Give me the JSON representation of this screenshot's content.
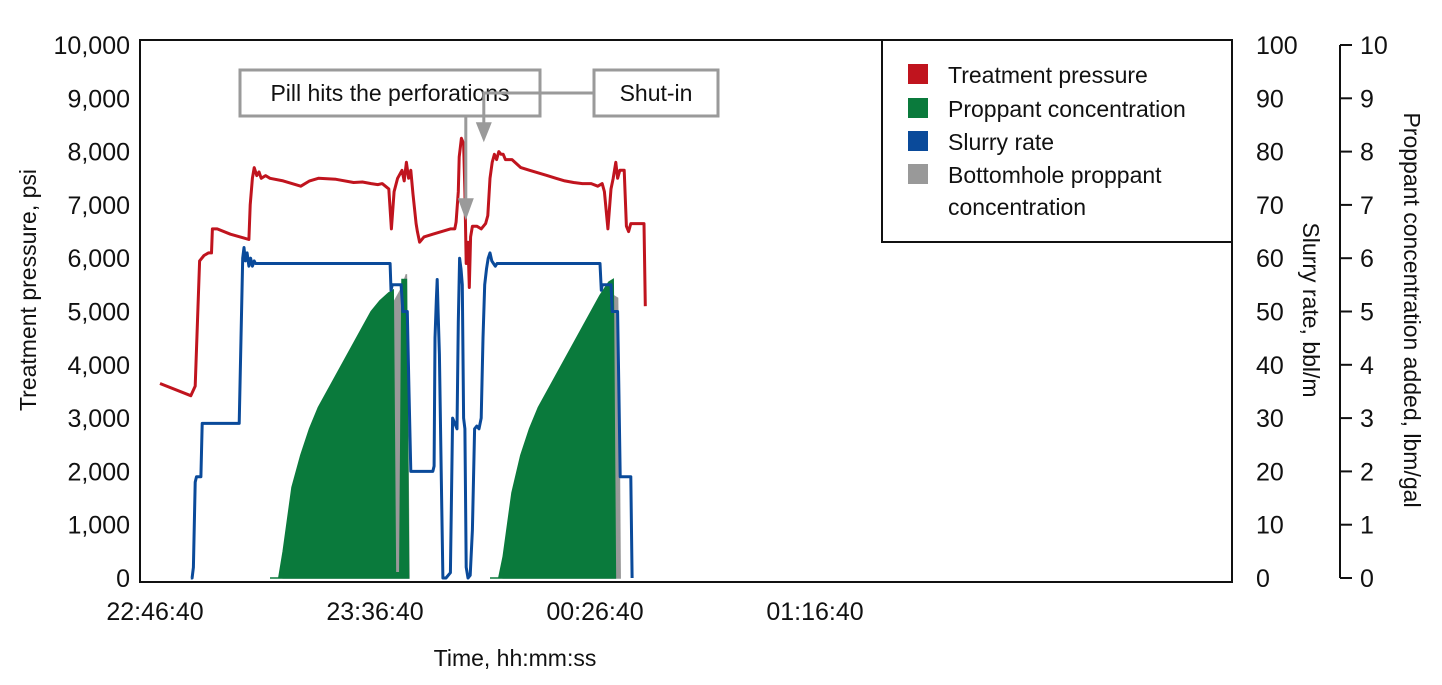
{
  "chart_data": {
    "type": "line",
    "xlabel": "Time, hh:mm:ss",
    "ylabel_left": "Treatment pressure, psi",
    "ylabel_right1": "Slurry rate, bbl/m",
    "ylabel_right2": "Proppant concentration added, lbm/gal",
    "x_ticks": [
      "22:46:40",
      "23:36:40",
      "00:26:40",
      "01:16:40"
    ],
    "x_tick_minutes": [
      0,
      50,
      100,
      150
    ],
    "xlim": [
      0,
      150
    ],
    "left_ticks": [
      "0",
      "1,000",
      "2,000",
      "3,000",
      "4,000",
      "5,000",
      "6,000",
      "7,000",
      "8,000",
      "9,000",
      "10,000"
    ],
    "ylim_left": [
      0,
      10000
    ],
    "right1_ticks": [
      "0",
      "10",
      "20",
      "30",
      "40",
      "50",
      "60",
      "70",
      "80",
      "90",
      "100"
    ],
    "ylim_right1": [
      0,
      100
    ],
    "right2_ticks": [
      "0",
      "1",
      "2",
      "3",
      "4",
      "5",
      "6",
      "7",
      "8",
      "9",
      "10"
    ],
    "ylim_right2": [
      0,
      10
    ],
    "legend_position": "top-right",
    "legend": [
      {
        "label": "Treatment pressure",
        "color": "#c0141e"
      },
      {
        "label": "Proppant concentration",
        "color": "#0a7a3c"
      },
      {
        "label": "Slurry rate",
        "color": "#0a4a9a"
      },
      {
        "label": "Bottomhole proppant concentration",
        "label_lines": [
          "Bottomhole proppant",
          "concentration"
        ],
        "color": "#999999"
      }
    ],
    "annotations": [
      {
        "text": "Pill hits the perforations",
        "x": 69.5,
        "y_pressure": 6600
      },
      {
        "text": "Shut-in",
        "x": 73.6,
        "y_pressure": 8100
      }
    ],
    "series": [
      {
        "name": "Treatment pressure",
        "color": "#c0141e",
        "axis": "left",
        "segments": [
          [
            [
              0,
              3650
            ],
            [
              7,
              3420
            ],
            [
              8,
              3600
            ],
            [
              9,
              5950
            ],
            [
              10,
              6050
            ],
            [
              11,
              6100
            ],
            [
              11.7,
              6100
            ],
            [
              11.9,
              6550
            ],
            [
              13,
              6550
            ],
            [
              16,
              6450
            ],
            [
              19,
              6380
            ],
            [
              20.2,
              6350
            ],
            [
              20.5,
              7000
            ],
            [
              21,
              7500
            ],
            [
              21.4,
              7700
            ],
            [
              22,
              7550
            ],
            [
              22.5,
              7620
            ],
            [
              23,
              7500
            ],
            [
              24,
              7550
            ],
            [
              25,
              7500
            ],
            [
              28,
              7450
            ],
            [
              30,
              7400
            ],
            [
              32,
              7350
            ],
            [
              34,
              7450
            ],
            [
              36,
              7500
            ],
            [
              40,
              7480
            ],
            [
              44,
              7420
            ],
            [
              46,
              7430
            ],
            [
              48,
              7400
            ],
            [
              49.5,
              7380
            ],
            [
              50.5,
              7400
            ],
            [
              52,
              7300
            ],
            [
              52.6,
              6550
            ],
            [
              53.2,
              7250
            ],
            [
              54,
              7500
            ],
            [
              55,
              7650
            ],
            [
              55.5,
              7450
            ],
            [
              56,
              7800
            ],
            [
              56.5,
              7500
            ],
            [
              57,
              7650
            ],
            [
              57.5,
              7200
            ],
            [
              58.2,
              6650
            ],
            [
              58.5,
              6500
            ],
            [
              59,
              6300
            ],
            [
              60,
              6400
            ],
            [
              62,
              6450
            ],
            [
              64,
              6500
            ],
            [
              66,
              6550
            ],
            [
              67,
              6550
            ],
            [
              67.3,
              6680
            ],
            [
              67.8,
              7250
            ],
            [
              68,
              7900
            ],
            [
              68.5,
              8250
            ],
            [
              69,
              8150
            ],
            [
              69.3,
              7250
            ],
            [
              69.6,
              5900
            ],
            [
              70,
              6300
            ],
            [
              70.3,
              5450
            ],
            [
              70.6,
              6400
            ],
            [
              71,
              6600
            ],
            [
              72,
              6600
            ],
            [
              73,
              6550
            ],
            [
              74,
              6650
            ],
            [
              74.5,
              6800
            ],
            [
              75,
              7500
            ],
            [
              75.5,
              7800
            ],
            [
              76,
              7950
            ],
            [
              76.5,
              7850
            ],
            [
              77,
              8000
            ],
            [
              77.5,
              7950
            ],
            [
              78,
              7950
            ],
            [
              78.5,
              7850
            ],
            [
              80,
              7850
            ],
            [
              82,
              7700
            ],
            [
              84,
              7650
            ],
            [
              86,
              7600
            ],
            [
              88,
              7550
            ],
            [
              90,
              7500
            ],
            [
              92,
              7450
            ],
            [
              94,
              7420
            ],
            [
              96,
              7400
            ],
            [
              98,
              7400
            ],
            [
              99.5,
              7350
            ],
            [
              100.5,
              7400
            ],
            [
              101,
              7250
            ],
            [
              101.8,
              6550
            ],
            [
              102.5,
              7300
            ],
            [
              103,
              7500
            ],
            [
              103.6,
              7800
            ],
            [
              104,
              7500
            ],
            [
              104.5,
              7650
            ],
            [
              105.5,
              7650
            ],
            [
              106,
              6600
            ],
            [
              106.5,
              6500
            ],
            [
              107,
              6650
            ],
            [
              110,
              6650
            ],
            [
              110.3,
              5100
            ]
          ]
        ]
      },
      {
        "name": "Slurry rate",
        "color": "#0a4a9a",
        "axis": "right1",
        "segments": [
          [
            [
              7,
              0
            ],
            [
              7.3,
              0
            ],
            [
              7.6,
              2
            ],
            [
              8,
              18
            ],
            [
              8.3,
              19
            ],
            [
              9.3,
              19
            ],
            [
              9.6,
              29
            ],
            [
              18,
              29
            ],
            [
              18.4,
              45
            ],
            [
              18.8,
              60
            ],
            [
              19.1,
              62
            ],
            [
              19.4,
              59.5
            ],
            [
              19.8,
              61
            ],
            [
              20.2,
              58.5
            ],
            [
              20.6,
              60
            ],
            [
              21,
              58.5
            ],
            [
              21.4,
              59.5
            ],
            [
              21.7,
              59
            ],
            [
              52.3,
              59
            ],
            [
              52.5,
              54
            ],
            [
              52.8,
              55
            ],
            [
              54.8,
              55
            ],
            [
              55.2,
              50
            ],
            [
              56.2,
              50
            ],
            [
              56.6,
              35
            ],
            [
              57,
              20
            ],
            [
              62,
              20
            ],
            [
              62.3,
              21
            ],
            [
              62.5,
              45
            ],
            [
              62.8,
              52
            ],
            [
              63,
              56
            ],
            [
              63.2,
              50
            ],
            [
              63.5,
              42
            ],
            [
              63.9,
              20
            ],
            [
              64.3,
              0
            ],
            [
              65,
              0
            ],
            [
              66,
              1
            ],
            [
              66.5,
              30
            ],
            [
              67,
              29
            ],
            [
              67.5,
              28
            ],
            [
              67.8,
              48
            ],
            [
              68.1,
              60
            ],
            [
              68.4,
              58
            ],
            [
              68.7,
              55
            ],
            [
              69,
              30
            ],
            [
              69.3,
              28
            ],
            [
              69.6,
              2
            ],
            [
              70,
              0
            ],
            [
              70.5,
              0.5
            ],
            [
              71,
              9
            ],
            [
              71.5,
              28
            ],
            [
              72,
              28.5
            ],
            [
              72.5,
              28
            ],
            [
              73,
              30
            ],
            [
              73.4,
              45
            ],
            [
              73.8,
              55
            ],
            [
              74.2,
              58
            ],
            [
              74.6,
              60
            ],
            [
              75,
              61
            ],
            [
              75.4,
              59.5
            ],
            [
              75.8,
              59
            ],
            [
              76.2,
              58.5
            ],
            [
              76.6,
              59
            ],
            [
              100,
              59
            ],
            [
              100.3,
              54
            ],
            [
              100.5,
              55
            ],
            [
              102.5,
              55
            ],
            [
              102.8,
              50
            ],
            [
              104,
              50
            ],
            [
              104.3,
              35
            ],
            [
              104.6,
              19
            ],
            [
              107,
              19
            ],
            [
              107.3,
              0
            ]
          ]
        ]
      },
      {
        "name": "Proppant concentration",
        "color": "#0a7a3c",
        "axis": "right2",
        "segments": [
          [
            [
              25,
              0
            ],
            [
              27,
              0
            ],
            [
              28,
              0.5
            ],
            [
              30,
              1.7
            ],
            [
              32,
              2.3
            ],
            [
              34,
              2.8
            ],
            [
              36,
              3.2
            ],
            [
              38,
              3.5
            ],
            [
              40,
              3.8
            ],
            [
              42,
              4.1
            ],
            [
              44,
              4.4
            ],
            [
              46,
              4.7
            ],
            [
              48,
              5.0
            ],
            [
              50,
              5.2
            ],
            [
              52,
              5.35
            ],
            [
              53,
              5.4
            ],
            [
              53.5,
              0.1
            ],
            [
              54.5,
              0.1
            ],
            [
              55,
              5.6
            ],
            [
              56,
              5.6
            ],
            [
              56.5,
              0
            ]
          ],
          [
            [
              75,
              0
            ],
            [
              77,
              0
            ],
            [
              78,
              0.4
            ],
            [
              80,
              1.6
            ],
            [
              82,
              2.3
            ],
            [
              84,
              2.8
            ],
            [
              86,
              3.2
            ],
            [
              88,
              3.5
            ],
            [
              90,
              3.8
            ],
            [
              92,
              4.1
            ],
            [
              94,
              4.4
            ],
            [
              96,
              4.7
            ],
            [
              98,
              5.0
            ],
            [
              100,
              5.3
            ],
            [
              102,
              5.55
            ],
            [
              103,
              5.6
            ],
            [
              103.5,
              0
            ]
          ]
        ]
      },
      {
        "name": "Bottomhole proppant concentration",
        "color": "#999999",
        "axis": "right2",
        "segments": [
          [
            [
              28,
              0.1
            ],
            [
              30,
              1.2
            ],
            [
              32,
              1.8
            ],
            [
              34,
              2.3
            ],
            [
              36,
              2.7
            ],
            [
              38,
              3.05
            ],
            [
              40,
              3.35
            ],
            [
              42,
              3.65
            ],
            [
              44,
              3.95
            ],
            [
              46,
              4.25
            ],
            [
              48,
              4.55
            ],
            [
              50,
              4.85
            ],
            [
              52,
              5.05
            ],
            [
              53,
              5.15
            ],
            [
              54,
              5.3
            ],
            [
              55,
              5.45
            ],
            [
              56,
              5.7
            ],
            [
              56.3,
              3.0
            ],
            [
              56.6,
              0
            ]
          ],
          [
            [
              78,
              0.1
            ],
            [
              80,
              1.2
            ],
            [
              82,
              1.8
            ],
            [
              84,
              2.3
            ],
            [
              86,
              2.7
            ],
            [
              88,
              3.05
            ],
            [
              90,
              3.35
            ],
            [
              92,
              3.65
            ],
            [
              94,
              3.95
            ],
            [
              96,
              4.25
            ],
            [
              98,
              4.55
            ],
            [
              100,
              4.85
            ],
            [
              102,
              5.2
            ],
            [
              103,
              5.3
            ],
            [
              104,
              5.25
            ],
            [
              104.4,
              2.0
            ],
            [
              104.6,
              0
            ]
          ]
        ]
      }
    ]
  }
}
